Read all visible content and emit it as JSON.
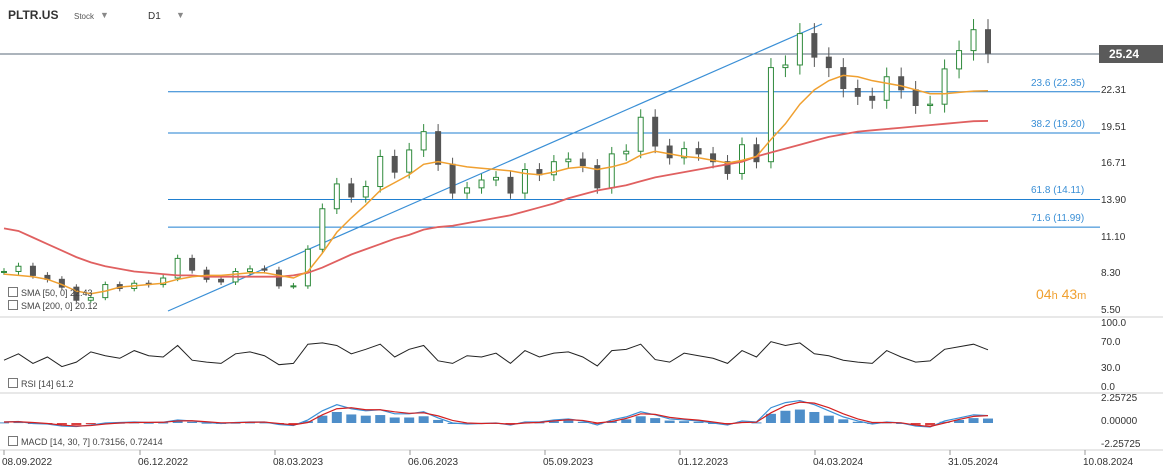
{
  "header": {
    "symbol": "PLTR.US",
    "type": "Stock",
    "timeframe": "D1"
  },
  "last_price": "25.24",
  "countdown": {
    "hours": "04",
    "h": "h",
    "minutes": "43",
    "m": "m"
  },
  "colors": {
    "up": "#2f8a3c",
    "down": "#555555",
    "sma50": "#f0a030",
    "sma200": "#e06060",
    "fib": "#1f7fd0",
    "trend": "#3a8fd6",
    "rsi": "#222222",
    "macd_line": "#3a8fd6",
    "signal_line": "#d42020"
  },
  "indicators": {
    "sma50": "SMA [50, 0]  22.43",
    "sma200": "SMA [200, 0]  20.12",
    "rsi": "RSI [14]  61.2",
    "macd": "MACD [14, 30, 7]  0.73156,  0.72414"
  },
  "chart_data": [
    {
      "type": "line",
      "name": "price",
      "y_ticks": [
        "25.24",
        "22.31",
        "19.51",
        "16.71",
        "13.90",
        "11.10",
        "8.30",
        "5.50"
      ],
      "fib_levels": [
        {
          "label": "23.6 (22.35)",
          "value": 22.35
        },
        {
          "label": "38.2 (19.20)",
          "value": 19.2
        },
        {
          "label": "61.8 (14.11)",
          "value": 14.11
        },
        {
          "label": "71.6 (11.99)",
          "value": 11.99
        }
      ],
      "horizontal_line": 25.24,
      "x_ticks": [
        "08.09.2022",
        "06.12.2022",
        "08.03.2023",
        "06.06.2023",
        "05.09.2023",
        "01.12.2023",
        "04.03.2024",
        "31.05.2024",
        "10.08.2024"
      ],
      "close": [
        8.6,
        9.0,
        8.3,
        8.0,
        7.4,
        6.4,
        6.6,
        7.6,
        7.3,
        7.7,
        7.6,
        8.1,
        9.6,
        8.7,
        8.0,
        7.8,
        8.6,
        8.8,
        8.7,
        7.5,
        7.5,
        10.3,
        13.4,
        15.3,
        14.3,
        15.1,
        17.4,
        16.2,
        17.9,
        19.3,
        16.8,
        14.6,
        15.0,
        15.6,
        15.8,
        14.6,
        16.4,
        16.0,
        17.0,
        17.2,
        16.7,
        15.0,
        17.6,
        17.8,
        20.4,
        18.2,
        17.3,
        18.0,
        17.6,
        17.0,
        16.1,
        18.3,
        17.0,
        24.2,
        24.4,
        26.8,
        25.0,
        24.2,
        22.6,
        22.0,
        21.7,
        23.5,
        22.5,
        21.3,
        21.4,
        24.1,
        25.5,
        27.1,
        25.3
      ],
      "sma50": [
        8.4,
        8.3,
        8.2,
        8.0,
        7.6,
        7.1,
        6.9,
        7.1,
        7.4,
        7.5,
        7.6,
        7.7,
        8.0,
        8.2,
        8.3,
        8.3,
        8.4,
        8.5,
        8.5,
        8.3,
        8.1,
        8.6,
        10.0,
        11.6,
        12.7,
        13.7,
        14.8,
        15.4,
        16.0,
        16.8,
        17.0,
        16.8,
        16.6,
        16.5,
        16.4,
        16.3,
        16.1,
        16.0,
        16.2,
        16.5,
        16.6,
        16.4,
        16.6,
        16.9,
        17.5,
        17.8,
        17.6,
        17.4,
        17.3,
        17.1,
        16.9,
        17.1,
        17.4,
        18.7,
        19.9,
        21.4,
        22.5,
        23.2,
        23.6,
        23.5,
        23.2,
        23.0,
        22.8,
        22.5,
        22.2,
        22.2,
        22.3,
        22.4,
        22.43
      ],
      "sma200": [
        11.9,
        11.7,
        11.2,
        10.7,
        10.2,
        9.7,
        9.3,
        9.0,
        8.8,
        8.6,
        8.5,
        8.4,
        8.3,
        8.3,
        8.2,
        8.2,
        8.2,
        8.2,
        8.2,
        8.2,
        8.3,
        8.5,
        8.9,
        9.4,
        9.9,
        10.3,
        10.7,
        11.1,
        11.4,
        11.8,
        12.0,
        12.1,
        12.3,
        12.5,
        12.7,
        12.9,
        13.2,
        13.5,
        13.8,
        14.2,
        14.5,
        14.8,
        15.0,
        15.2,
        15.5,
        15.8,
        16.0,
        16.2,
        16.4,
        16.6,
        16.8,
        17.0,
        17.4,
        17.7,
        18.0,
        18.3,
        18.6,
        18.9,
        19.1,
        19.3,
        19.4,
        19.5,
        19.6,
        19.7,
        19.8,
        19.9,
        20.0,
        20.1,
        20.12
      ]
    },
    {
      "type": "line",
      "name": "RSI",
      "y_ticks": [
        "100.0",
        "70.0",
        "30.0",
        "0.0"
      ],
      "values": [
        45,
        55,
        40,
        50,
        35,
        42,
        58,
        52,
        48,
        60,
        52,
        50,
        68,
        45,
        42,
        40,
        55,
        58,
        52,
        38,
        40,
        70,
        72,
        68,
        55,
        62,
        70,
        50,
        62,
        68,
        44,
        40,
        52,
        50,
        56,
        40,
        60,
        50,
        56,
        58,
        50,
        36,
        60,
        62,
        70,
        46,
        42,
        56,
        52,
        48,
        40,
        60,
        50,
        74,
        68,
        72,
        55,
        52,
        45,
        42,
        40,
        60,
        50,
        42,
        44,
        62,
        66,
        70,
        61.2
      ]
    },
    {
      "type": "bar",
      "name": "MACD",
      "y_ticks": [
        "2.25725",
        "0.00000",
        "-2.25725"
      ],
      "macd": [
        0.1,
        0.15,
        -0.05,
        -0.1,
        -0.3,
        -0.35,
        -0.2,
        0.0,
        0.05,
        0.1,
        0.05,
        0.08,
        0.3,
        0.2,
        0.05,
        -0.05,
        0.05,
        0.1,
        0.1,
        -0.15,
        -0.25,
        0.3,
        1.2,
        1.8,
        1.4,
        1.2,
        1.3,
        0.9,
        0.9,
        1.1,
        0.5,
        0.0,
        -0.1,
        -0.05,
        0.0,
        -0.2,
        0.1,
        0.1,
        0.3,
        0.4,
        0.2,
        -0.2,
        0.3,
        0.6,
        1.1,
        0.8,
        0.4,
        0.3,
        0.2,
        0.0,
        -0.2,
        0.2,
        0.1,
        1.5,
        2.0,
        2.2,
        1.8,
        1.2,
        0.6,
        0.2,
        -0.1,
        0.1,
        0.0,
        -0.3,
        -0.4,
        0.2,
        0.5,
        0.8,
        0.73156
      ],
      "signal": [
        0.1,
        0.12,
        0.05,
        -0.05,
        -0.2,
        -0.3,
        -0.25,
        -0.1,
        0.0,
        0.05,
        0.06,
        0.07,
        0.2,
        0.22,
        0.12,
        0.02,
        0.03,
        0.07,
        0.09,
        -0.05,
        -0.18,
        0.05,
        0.8,
        1.4,
        1.5,
        1.3,
        1.3,
        1.1,
        0.95,
        1.0,
        0.7,
        0.25,
        0.0,
        -0.05,
        -0.02,
        -0.12,
        0.0,
        0.06,
        0.2,
        0.32,
        0.25,
        0.0,
        0.15,
        0.45,
        0.9,
        0.85,
        0.55,
        0.4,
        0.28,
        0.1,
        -0.1,
        0.05,
        0.08,
        1.0,
        1.7,
        2.05,
        1.95,
        1.5,
        0.9,
        0.4,
        0.05,
        0.05,
        0.02,
        -0.2,
        -0.35,
        0.0,
        0.35,
        0.65,
        0.72414
      ]
    }
  ]
}
